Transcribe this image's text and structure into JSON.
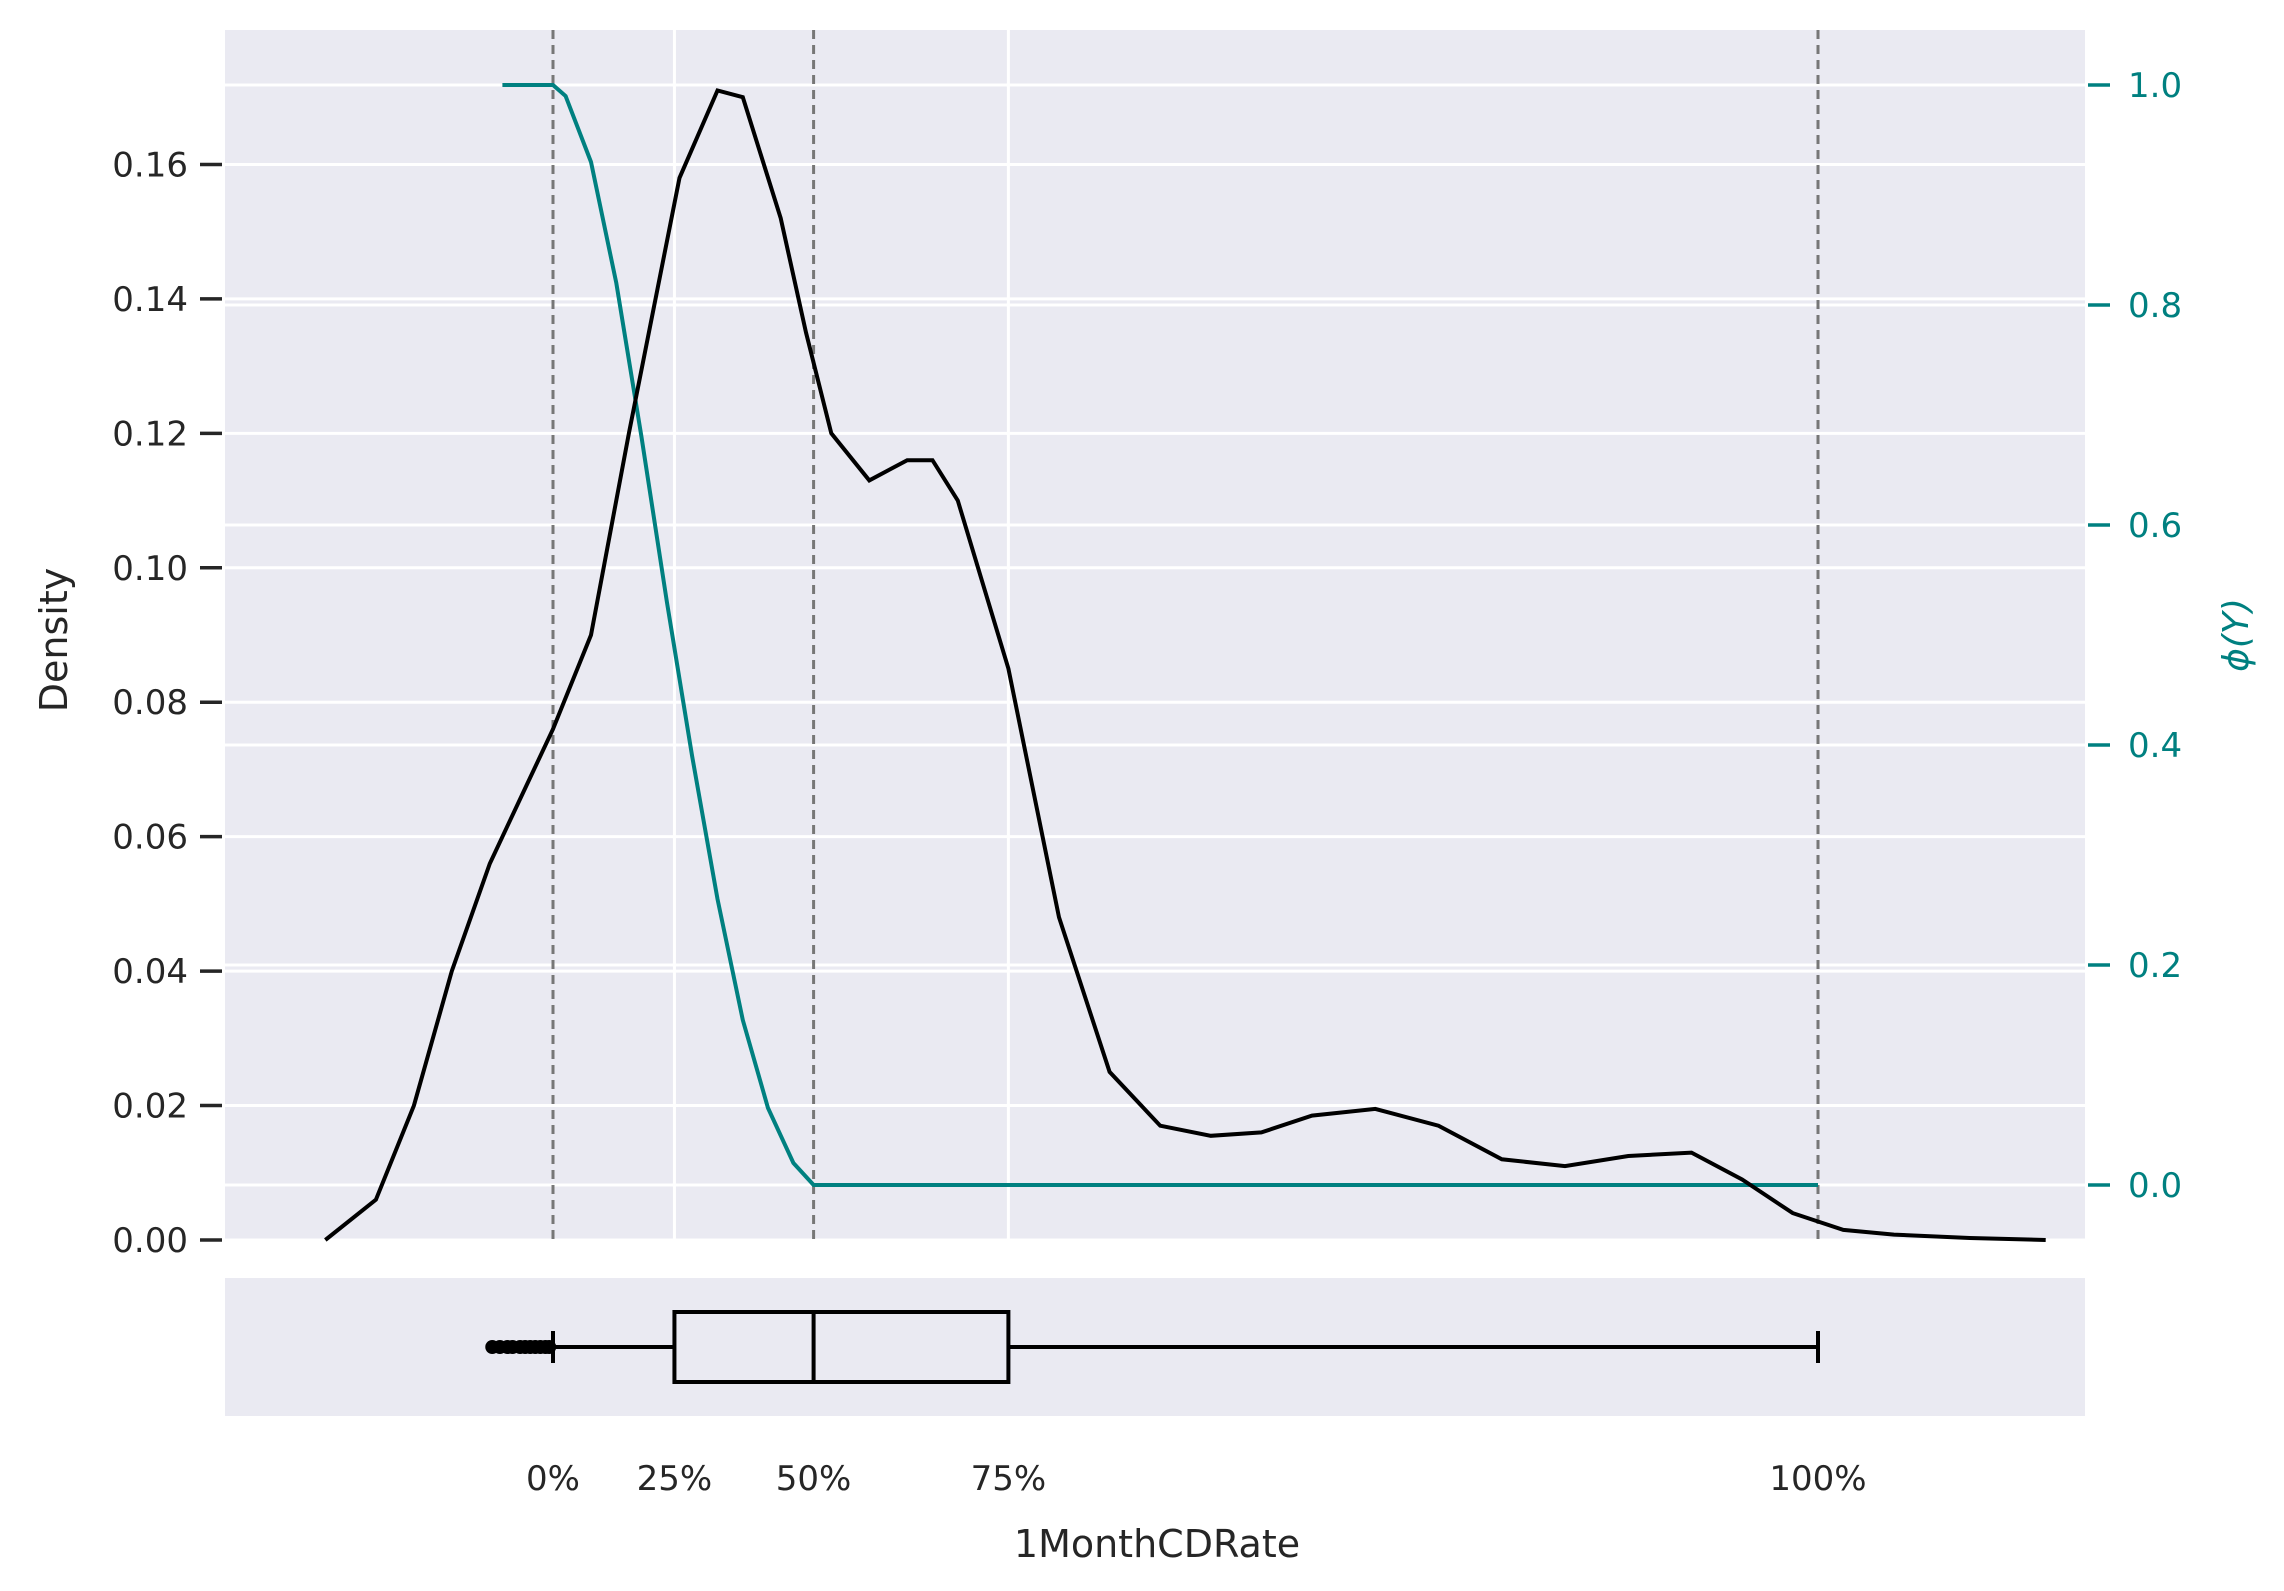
{
  "chart_data": [
    {
      "type": "line",
      "xlabel": "1MonthCDRate",
      "ylabel": "Density",
      "y2label": "ϕ(Y)",
      "ylim": [
        0,
        0.18
      ],
      "y2lim": [
        -0.05,
        1.05
      ],
      "grid": true,
      "left_ticks": [
        "0.00",
        "0.02",
        "0.04",
        "0.06",
        "0.08",
        "0.10",
        "0.12",
        "0.14",
        "0.16"
      ],
      "right_ticks": [
        "0.0",
        "0.2",
        "0.4",
        "0.6",
        "0.8",
        "1.0"
      ],
      "quantile_labels": [
        "0%",
        "25%",
        "50%",
        "75%",
        "100%"
      ],
      "quantile_lines_at": [
        "0%",
        "50%",
        "100%"
      ],
      "density_series": {
        "name": "Density",
        "color": "#000000",
        "points": [
          [
            -9,
            0.0
          ],
          [
            -7,
            0.006
          ],
          [
            -5.5,
            0.02
          ],
          [
            -4,
            0.04
          ],
          [
            -2.5,
            0.056
          ],
          [
            -1,
            0.068
          ],
          [
            0,
            0.076
          ],
          [
            1.5,
            0.09
          ],
          [
            3,
            0.12
          ],
          [
            5,
            0.158
          ],
          [
            6.5,
            0.171
          ],
          [
            7.5,
            0.17
          ],
          [
            9,
            0.152
          ],
          [
            10,
            0.135
          ],
          [
            11,
            0.12
          ],
          [
            12.5,
            0.113
          ],
          [
            14,
            0.116
          ],
          [
            15,
            0.116
          ],
          [
            16,
            0.11
          ],
          [
            18,
            0.085
          ],
          [
            20,
            0.048
          ],
          [
            22,
            0.025
          ],
          [
            24,
            0.017
          ],
          [
            26,
            0.0155
          ],
          [
            28,
            0.016
          ],
          [
            30,
            0.0185
          ],
          [
            32.5,
            0.0195
          ],
          [
            35,
            0.017
          ],
          [
            37.5,
            0.012
          ],
          [
            40,
            0.011
          ],
          [
            42.5,
            0.0125
          ],
          [
            45,
            0.013
          ],
          [
            47,
            0.009
          ],
          [
            49,
            0.004
          ],
          [
            51,
            0.0015
          ],
          [
            53,
            0.0008
          ],
          [
            56,
            0.0003
          ],
          [
            59,
            0.0
          ]
        ]
      },
      "phi_series": {
        "name": "ϕ(Y)",
        "color": "#008080",
        "points": [
          [
            -2,
            1.0
          ],
          [
            0,
            1.0
          ],
          [
            0.5,
            0.99
          ],
          [
            1.5,
            0.93
          ],
          [
            2.5,
            0.82
          ],
          [
            3.5,
            0.68
          ],
          [
            4.5,
            0.53
          ],
          [
            5.5,
            0.39
          ],
          [
            6.5,
            0.26
          ],
          [
            7.5,
            0.15
          ],
          [
            8.5,
            0.07
          ],
          [
            9.5,
            0.02
          ],
          [
            10.3,
            0.0
          ],
          [
            12,
            0.0
          ],
          [
            20,
            0.0
          ],
          [
            30,
            0.0
          ],
          [
            40,
            0.0
          ],
          [
            50,
            0.0
          ]
        ]
      }
    },
    {
      "type": "box",
      "xlabel": "1MonthCDRate",
      "whisker_low": 0,
      "q1": 4.8,
      "median": 10.3,
      "q3": 18,
      "whisker_high": 50,
      "outliers": [
        -2.4,
        -2.1,
        -1.8,
        -1.6,
        -1.3,
        -1.1,
        -0.9,
        -0.7,
        -0.5,
        -0.3,
        -0.15
      ]
    }
  ]
}
